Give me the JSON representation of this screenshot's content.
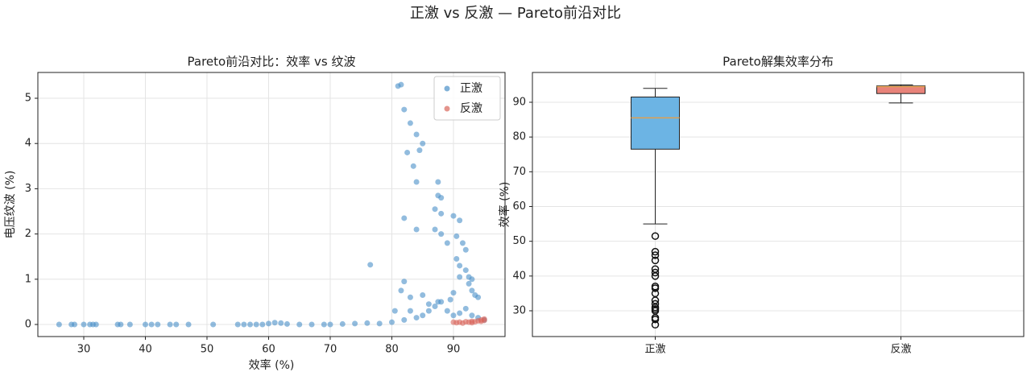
{
  "title": "正激 vs 反激 — Pareto前沿对比",
  "chart_data": [
    {
      "type": "scatter",
      "title": "Pareto前沿对比：效率 vs 纹波",
      "xlabel": "效率 (%)",
      "ylabel": "电压纹波 (%)",
      "xlim": [
        22.55,
        98.37
      ],
      "ylim": [
        -0.267,
        5.57
      ],
      "xticks": [
        30,
        40,
        50,
        60,
        70,
        80,
        90
      ],
      "yticks": [
        0,
        1,
        2,
        3,
        4,
        5
      ],
      "grid": true,
      "legend": "upper right",
      "series": [
        {
          "name": "正激",
          "color": "#4a90c8",
          "x": [
            26,
            28,
            28.5,
            30,
            31,
            31.5,
            32,
            35.5,
            36,
            37.5,
            40,
            41,
            42,
            44,
            45,
            47,
            51,
            55,
            56,
            57,
            58,
            59,
            60,
            61,
            62,
            63,
            65,
            67,
            69,
            70,
            72,
            74,
            76,
            78,
            80,
            82,
            84,
            85,
            86,
            87,
            88,
            89,
            90,
            91,
            92,
            93,
            94,
            95,
            81,
            81.5,
            82,
            83,
            83.5,
            84,
            84.5,
            85,
            82.5,
            84,
            87.5,
            87.5,
            88,
            87,
            88,
            82,
            84,
            87,
            88,
            90,
            91,
            89,
            90.5,
            91.5,
            92,
            90.5,
            91,
            92,
            76.5,
            92.5,
            92.5,
            93,
            93.5,
            81.5,
            82,
            83,
            85,
            86,
            87.5,
            89.5,
            90,
            91,
            93,
            94,
            80.5,
            83
          ],
          "y": [
            0,
            0,
            0,
            0,
            0,
            0,
            0,
            0,
            0,
            0,
            0,
            0,
            0,
            0,
            0,
            0,
            0,
            0,
            0,
            0,
            0,
            0,
            0.02,
            0.04,
            0.03,
            0.01,
            0,
            0,
            0,
            0,
            0.01,
            0.02,
            0.03,
            0.02,
            0.05,
            0.1,
            0.15,
            0.2,
            0.3,
            0.4,
            0.5,
            0.3,
            0.2,
            0.25,
            0.35,
            0.2,
            0.15,
            0.1,
            5.27,
            5.3,
            4.75,
            4.45,
            3.5,
            4.2,
            3.85,
            4.0,
            3.8,
            3.15,
            3.15,
            2.85,
            2.8,
            2.55,
            2.45,
            2.35,
            2.1,
            2.1,
            2.0,
            2.4,
            2.3,
            1.8,
            1.95,
            1.8,
            1.65,
            1.45,
            1.3,
            1.2,
            1.32,
            1.05,
            0.9,
            0.75,
            0.65,
            0.75,
            0.95,
            0.6,
            0.65,
            0.45,
            0.5,
            0.55,
            0.7,
            1.05,
            1.0,
            0.6,
            0.3,
            0.3
          ]
        },
        {
          "name": "反激",
          "color": "#d9665b",
          "x": [
            90,
            90.5,
            91,
            91.5,
            92,
            92.5,
            93,
            93.5,
            94,
            94.5,
            95,
            95,
            94.5,
            93
          ],
          "y": [
            0.05,
            0.04,
            0.05,
            0.03,
            0.06,
            0.05,
            0.07,
            0.06,
            0.08,
            0.1,
            0.09,
            0.12,
            0.07,
            0.04
          ]
        }
      ]
    },
    {
      "type": "box",
      "title": "Pareto解集效率分布",
      "ylabel": "效率 (%)",
      "ylim": [
        22.59,
        98.57
      ],
      "yticks": [
        30,
        40,
        50,
        60,
        70,
        80,
        90
      ],
      "grid": true,
      "categories": [
        "正激",
        "反激"
      ],
      "colors": [
        "#6cb4e4",
        "#e8837a"
      ],
      "median_color": "#e0a050",
      "boxes": [
        {
          "whislo": 55,
          "q1": 76.5,
          "med": 85.5,
          "q3": 91.5,
          "whishi": 94,
          "fliers": [
            51.5,
            47,
            46,
            44.5,
            42,
            41,
            40,
            37,
            36.5,
            35,
            33,
            32,
            31,
            30.5,
            30,
            28,
            27.5,
            26
          ]
        },
        {
          "whislo": 89.8,
          "q1": 92.5,
          "med": 94.5,
          "q3": 94.7,
          "whishi": 95,
          "fliers": []
        }
      ]
    }
  ]
}
